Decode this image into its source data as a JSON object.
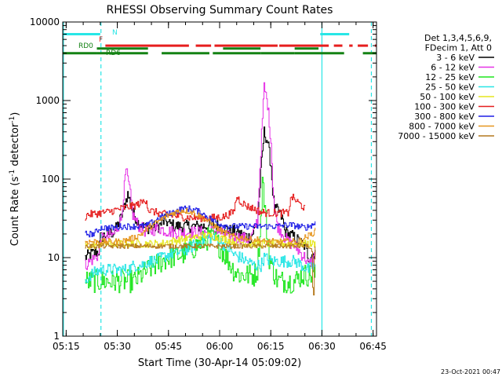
{
  "chart_data": {
    "type": "line",
    "title": "RHESSI Observing Summary Count Rates",
    "xlabel": "Start Time (30-Apr-14 05:09:02)",
    "ylabel": "Count Rate (s⁻¹ detector⁻¹)",
    "ylabel_main": "Count Rate (s",
    "ylabel_mid": " detector",
    "ylabel_end": ")",
    "ylabel_sup": "-1",
    "footer": "23-Oct-2021 00:47",
    "yscale": "log",
    "ylim": [
      1,
      10000
    ],
    "xlim_minutes": [
      5.0,
      97.0
    ],
    "x_unit": "minutes since 05:09:02",
    "x_ticks": [
      {
        "label": "05:15",
        "t": 6
      },
      {
        "label": "05:30",
        "t": 21
      },
      {
        "label": "05:45",
        "t": 36
      },
      {
        "label": "06:00",
        "t": 51
      },
      {
        "label": "06:15",
        "t": 66
      },
      {
        "label": "06:30",
        "t": 81
      },
      {
        "label": "06:45",
        "t": 96
      }
    ],
    "y_ticks": [
      {
        "label": "1",
        "v": 1
      },
      {
        "label": "10",
        "v": 10
      },
      {
        "label": "100",
        "v": 100
      },
      {
        "label": "1000",
        "v": 1000
      },
      {
        "label": "10000",
        "v": 10000
      }
    ],
    "legend": {
      "placement": "top-right",
      "header": [
        "Det 1,3,4,5,6,9,",
        "FDecim 1, Att 0"
      ],
      "entries": [
        {
          "label": "3 - 6 keV",
          "color": "#000000"
        },
        {
          "label": "6 - 12 keV",
          "color": "#e632e6"
        },
        {
          "label": "12 - 25 keV",
          "color": "#1ee61e"
        },
        {
          "label": "25 - 50 keV",
          "color": "#28e6e6"
        },
        {
          "label": "50 - 100 keV",
          "color": "#e6e61e"
        },
        {
          "label": "100 - 300 keV",
          "color": "#e61e1e"
        },
        {
          "label": "300 - 800 keV",
          "color": "#1e1ee6"
        },
        {
          "label": "800 - 7000 keV",
          "color": "#e6961e"
        },
        {
          "label": "7000 - 15000 keV",
          "color": "#b4781e"
        }
      ]
    },
    "flag_bars": [
      {
        "label": "N",
        "color": "#28e6e6",
        "value": 7000,
        "segments": [
          [
            5.0,
            16.0
          ],
          [
            80.5,
            89.0
          ]
        ]
      },
      {
        "label": "F",
        "color": "#e61e1e",
        "value": 5000,
        "segments": [
          [
            17.5,
            42.0
          ],
          [
            44.0,
            48.5
          ],
          [
            49.5,
            68.0
          ],
          [
            68.5,
            83.0
          ],
          [
            84.5,
            87.0
          ],
          [
            89.0,
            90.0
          ],
          [
            91.5,
            94.5
          ],
          [
            96.5,
            97.0
          ]
        ]
      },
      {
        "label": "RD0",
        "color": "#148214",
        "value": 4000,
        "segments": [
          [
            5.0,
            15.0
          ],
          [
            15.0,
            30.0
          ],
          [
            34.0,
            48.0
          ],
          [
            49.0,
            63.0
          ],
          [
            63.0,
            73.0
          ],
          [
            73.0,
            87.5
          ],
          [
            93.0,
            97.0
          ]
        ]
      },
      {
        "label": "RD6",
        "color": "#148214",
        "value": 4600,
        "segments": [
          [
            15.0,
            30.0
          ],
          [
            52.0,
            63.0
          ],
          [
            73.0,
            80.0
          ]
        ]
      }
    ],
    "vlines": [
      {
        "t": 5.2,
        "style": "solid",
        "color": "#28e6e6"
      },
      {
        "t": 16.2,
        "style": "dashed",
        "color": "#28e6e6"
      },
      {
        "t": 81.0,
        "style": "solid",
        "color": "#28e6e6"
      },
      {
        "t": 95.5,
        "style": "dashed",
        "color": "#28e6e6"
      }
    ],
    "series": [
      {
        "name": "3 - 6 keV",
        "color": "#000000",
        "noise": 0.08,
        "t": [
          11.5,
          13,
          15.5,
          16,
          18,
          20,
          22,
          24,
          25.5,
          27,
          29,
          31,
          33,
          35,
          36,
          38,
          42,
          46,
          50,
          53,
          54,
          55,
          57,
          60,
          62,
          63,
          64,
          65,
          66,
          66.5,
          67,
          68,
          69.5,
          70,
          71,
          73,
          75,
          76,
          77,
          78,
          79
        ],
        "v": [
          10,
          11,
          12,
          18,
          20,
          21,
          32,
          65,
          38,
          28,
          24,
          24,
          25,
          30,
          27,
          25,
          25,
          25,
          26,
          23,
          22,
          22,
          20,
          18,
          27,
          120,
          400,
          300,
          150,
          70,
          40,
          40,
          30,
          22,
          20,
          18,
          15,
          14,
          10,
          11,
          12
        ]
      },
      {
        "name": "6 - 12 keV",
        "color": "#e632e6",
        "noise": 0.08,
        "t": [
          11.5,
          13,
          15.5,
          16,
          18,
          20,
          22,
          23.5,
          24.5,
          25.5,
          27,
          29,
          31,
          33,
          35,
          38,
          42,
          46,
          50,
          53,
          54,
          55,
          57,
          60,
          62,
          63,
          64,
          65,
          66,
          66.5,
          67,
          68,
          69.5,
          70,
          71,
          73,
          75,
          76,
          77,
          78,
          79
        ],
        "v": [
          8,
          9,
          11,
          17,
          18,
          20,
          30,
          130,
          75,
          35,
          26,
          22,
          22,
          24,
          22,
          21,
          21,
          21,
          22,
          19,
          18,
          18,
          18,
          17,
          30,
          230,
          1500,
          900,
          300,
          90,
          40,
          25,
          20,
          18,
          16,
          14,
          11,
          10,
          8,
          9,
          11
        ]
      },
      {
        "name": "12 - 25 keV",
        "color": "#1ee61e",
        "noise": 0.15,
        "t": [
          11.5,
          13,
          16,
          18,
          20,
          22,
          24,
          26,
          28,
          30,
          32,
          34,
          36,
          40,
          43,
          46,
          48,
          50,
          53,
          55,
          57,
          58,
          59,
          60,
          61,
          62,
          63,
          63.5,
          64.5,
          65.5,
          66.5,
          68,
          70,
          73,
          75,
          77,
          79
        ],
        "v": [
          5,
          5,
          5,
          5,
          5,
          5,
          5,
          5,
          6,
          7,
          8,
          9,
          10,
          11,
          13,
          16,
          18,
          16,
          10,
          7,
          6,
          6,
          6,
          6,
          6,
          7,
          30,
          100,
          30,
          10,
          7,
          5,
          5,
          5,
          6,
          6,
          6
        ]
      },
      {
        "name": "25 - 50 keV",
        "color": "#28e6e6",
        "noise": 0.08,
        "t": [
          11.5,
          13,
          16,
          18,
          20,
          22,
          24,
          26,
          28,
          30,
          32,
          34,
          36,
          40,
          43,
          46,
          48,
          50,
          53,
          55,
          57,
          59,
          61,
          62,
          63,
          64,
          66,
          68,
          70,
          73,
          75,
          77,
          79
        ],
        "v": [
          5,
          6,
          7,
          7,
          7,
          7,
          7,
          8,
          8,
          9,
          9,
          10,
          11,
          12,
          14,
          17,
          18,
          17,
          14,
          11,
          10,
          9,
          8,
          8,
          8,
          10,
          9,
          9,
          9,
          9,
          8,
          7,
          8
        ]
      },
      {
        "name": "50 - 100 keV",
        "color": "#e6e61e",
        "noise": 0.05,
        "t": [
          11.5,
          13,
          16,
          18,
          20,
          22,
          24,
          26,
          28,
          30,
          32,
          34,
          36,
          40,
          43,
          46,
          48,
          50,
          53,
          55,
          57,
          59,
          61,
          63,
          65,
          67,
          69,
          71,
          73,
          75,
          77,
          79
        ],
        "v": [
          14,
          14,
          15,
          15,
          15,
          15,
          15,
          15,
          15,
          15,
          15,
          15,
          16,
          17,
          18,
          19,
          19,
          18,
          17,
          16,
          16,
          15,
          15,
          15,
          15,
          15,
          15,
          15,
          15,
          15,
          15,
          15
        ]
      },
      {
        "name": "100 - 300 keV",
        "color": "#e61e1e",
        "noise": 0.05,
        "t": [
          11.5,
          12,
          14,
          16,
          18,
          20,
          22,
          24,
          26,
          28,
          29.5,
          30,
          32,
          34,
          36,
          40,
          44,
          48,
          52,
          55,
          56,
          57,
          59,
          61,
          63,
          65,
          67,
          69,
          71,
          72,
          74,
          76
        ],
        "v": [
          33,
          35,
          36,
          37,
          38,
          40,
          42,
          44,
          46,
          50,
          55,
          40,
          38,
          36,
          35,
          33,
          32,
          32,
          33,
          38,
          60,
          52,
          45,
          42,
          38,
          37,
          37,
          37,
          37,
          60,
          50,
          42
        ]
      },
      {
        "name": "300 - 800 keV",
        "color": "#1e1ee6",
        "noise": 0.04,
        "t": [
          11.5,
          12,
          14,
          16,
          18,
          20,
          22,
          24,
          26,
          28,
          30,
          32,
          34,
          36,
          38,
          40,
          42,
          44,
          46,
          48,
          50,
          52,
          54,
          56,
          58,
          60,
          62,
          64,
          66,
          68,
          70,
          72,
          74,
          76,
          78,
          79
        ],
        "v": [
          20,
          20,
          20,
          24,
          24,
          24,
          25,
          25,
          25,
          25,
          26,
          30,
          33,
          36,
          39,
          42,
          42,
          40,
          36,
          32,
          28,
          26,
          25,
          25,
          25,
          25,
          25,
          25,
          25,
          25,
          26,
          26,
          25,
          24,
          26,
          28
        ]
      },
      {
        "name": "800 - 7000 keV",
        "color": "#e6961e",
        "noise": 0.04,
        "t": [
          11.5,
          12,
          14,
          16,
          18,
          20,
          22,
          24,
          26,
          28,
          29,
          30,
          32,
          34,
          36,
          38,
          40,
          42,
          44,
          46,
          48,
          50,
          52,
          54,
          56,
          58,
          60,
          62,
          64,
          66,
          68,
          70,
          72,
          74,
          76,
          78,
          79
        ],
        "v": [
          16,
          16,
          16,
          16,
          16,
          16,
          16,
          17,
          18,
          20,
          22,
          24,
          27,
          31,
          35,
          38,
          40,
          39,
          36,
          32,
          28,
          24,
          21,
          19,
          18,
          18,
          17,
          17,
          16,
          16,
          16,
          16,
          16,
          16,
          18,
          20,
          22
        ]
      },
      {
        "name": "7000 - 15000 keV",
        "color": "#b4781e",
        "noise": 0.03,
        "t": [
          11.5,
          14,
          18,
          22,
          26,
          30,
          34,
          38,
          42,
          46,
          50,
          54,
          58,
          62,
          66,
          70,
          74,
          77,
          78,
          78.4,
          78.8,
          79.2
        ],
        "v": [
          14,
          14,
          14,
          14,
          14,
          14,
          14,
          14,
          14,
          14,
          14,
          14,
          14,
          14,
          14,
          14,
          14,
          14,
          12,
          2,
          12,
          14
        ]
      }
    ]
  }
}
